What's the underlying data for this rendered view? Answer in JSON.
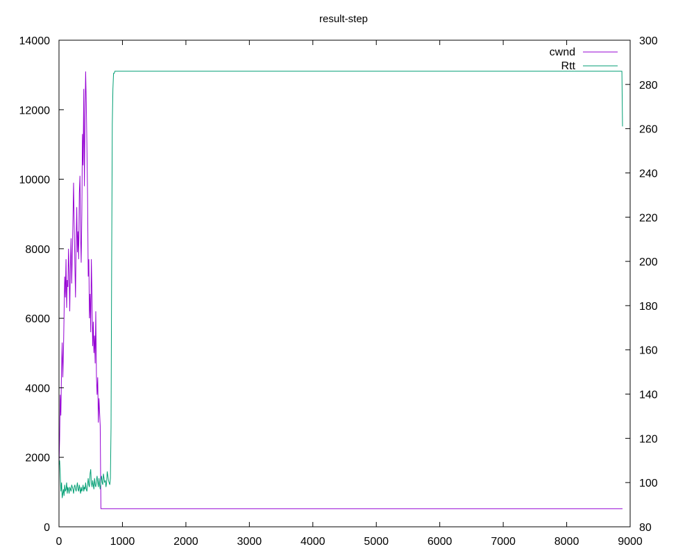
{
  "chart_data": {
    "type": "line",
    "title": "result-step",
    "xlabel": "",
    "ylabel": "",
    "y2label": "",
    "xlim": [
      0,
      9000
    ],
    "ylim": [
      0,
      14000
    ],
    "y2lim": [
      80,
      300
    ],
    "x_ticks": [
      0,
      1000,
      2000,
      3000,
      4000,
      5000,
      6000,
      7000,
      8000,
      9000
    ],
    "y_ticks": [
      0,
      2000,
      4000,
      6000,
      8000,
      10000,
      12000,
      14000
    ],
    "y2_ticks": [
      80,
      100,
      120,
      140,
      160,
      180,
      200,
      220,
      240,
      260,
      280,
      300
    ],
    "grid": false,
    "legend_position": "top-right",
    "series": [
      {
        "name": "cwnd",
        "axis": "y",
        "color": "#9400d3",
        "x": [
          0,
          10,
          20,
          30,
          40,
          50,
          60,
          70,
          80,
          90,
          100,
          110,
          120,
          130,
          140,
          150,
          160,
          170,
          180,
          190,
          200,
          210,
          220,
          230,
          240,
          250,
          260,
          270,
          280,
          290,
          300,
          310,
          320,
          330,
          340,
          350,
          360,
          370,
          380,
          390,
          400,
          410,
          420,
          430,
          440,
          450,
          460,
          470,
          480,
          490,
          500,
          510,
          520,
          530,
          540,
          550,
          560,
          570,
          580,
          590,
          600,
          610,
          620,
          630,
          640,
          650,
          660,
          670,
          680,
          690,
          700,
          710,
          720,
          730,
          740,
          750,
          760,
          770,
          780,
          790,
          800,
          810,
          820,
          830,
          840,
          850,
          8880
        ],
        "y": [
          1800,
          2500,
          3800,
          3200,
          4600,
          5300,
          4300,
          5000,
          6100,
          7200,
          6600,
          7700,
          6300,
          7100,
          6900,
          8000,
          7300,
          6200,
          7600,
          8300,
          7000,
          7800,
          8800,
          9900,
          8700,
          7500,
          6600,
          8200,
          9200,
          7900,
          8500,
          7700,
          9600,
          10100,
          8400,
          7600,
          9000,
          11300,
          10400,
          12600,
          9800,
          11800,
          13100,
          12200,
          11000,
          9500,
          7200,
          7700,
          6000,
          6700,
          5600,
          7700,
          6600,
          5200,
          5900,
          5000,
          5500,
          4700,
          6200,
          4300,
          3800,
          4300,
          3000,
          3700,
          3300,
          2900,
          520,
          520,
          520,
          520,
          520,
          520,
          520,
          520,
          520,
          520,
          520,
          520,
          520,
          520,
          520,
          520,
          520,
          520,
          520,
          520,
          520
        ]
      },
      {
        "name": "Rtt",
        "axis": "y2",
        "color": "#009e73",
        "x": [
          0,
          10,
          20,
          30,
          40,
          50,
          60,
          70,
          80,
          90,
          100,
          110,
          120,
          130,
          140,
          150,
          160,
          170,
          180,
          190,
          200,
          210,
          220,
          230,
          240,
          250,
          260,
          270,
          280,
          290,
          300,
          310,
          320,
          330,
          340,
          350,
          360,
          370,
          380,
          390,
          400,
          410,
          420,
          430,
          440,
          450,
          460,
          470,
          480,
          490,
          500,
          510,
          520,
          530,
          540,
          550,
          560,
          570,
          580,
          590,
          600,
          610,
          620,
          630,
          640,
          650,
          660,
          670,
          680,
          690,
          700,
          710,
          720,
          730,
          740,
          750,
          760,
          770,
          780,
          790,
          800,
          810,
          820,
          830,
          840,
          850,
          860,
          870,
          880,
          900,
          8800,
          8870,
          8880
        ],
        "y": [
          108,
          110,
          104,
          96,
          100,
          93,
          95,
          97,
          94,
          99,
          96,
          97,
          100,
          95,
          98,
          97,
          95,
          98,
          97,
          96,
          99,
          98,
          97,
          95,
          98,
          99,
          97,
          96,
          98,
          100,
          97,
          96,
          99,
          97,
          95,
          98,
          96,
          97,
          99,
          96,
          98,
          97,
          100,
          97,
          96,
          99,
          102,
          99,
          98,
          104,
          106,
          100,
          98,
          101,
          99,
          97,
          102,
          99,
          98,
          101,
          103,
          100,
          98,
          102,
          99,
          97,
          101,
          103,
          100,
          99,
          104,
          102,
          100,
          101,
          98,
          100,
          105,
          103,
          101,
          100,
          99,
          102,
          125,
          200,
          262,
          278,
          285,
          285,
          286,
          286,
          286,
          286,
          261
        ]
      }
    ]
  }
}
